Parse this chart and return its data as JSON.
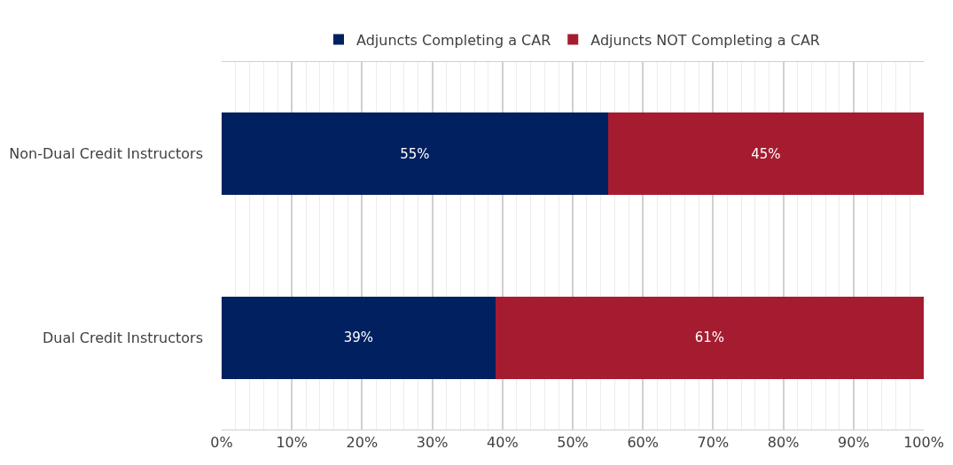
{
  "chart_data": {
    "type": "bar",
    "orientation": "horizontal",
    "stacked": true,
    "categories": [
      "Non-Dual Credit Instructors",
      "Dual Credit Instructors"
    ],
    "series": [
      {
        "name": "Adjuncts Completing a CAR",
        "color": "#002060",
        "values": [
          55,
          39
        ]
      },
      {
        "name": "Adjuncts NOT Completing a CAR",
        "color": "#a51c30",
        "values": [
          45,
          61
        ]
      }
    ],
    "value_labels": [
      [
        "55%",
        "39%"
      ],
      [
        "45%",
        "61%"
      ]
    ],
    "xlim": [
      0,
      100
    ],
    "xticks": [
      {
        "value": 0,
        "label": "0%"
      },
      {
        "value": 10,
        "label": "10%"
      },
      {
        "value": 20,
        "label": "20%"
      },
      {
        "value": 30,
        "label": "30%"
      },
      {
        "value": 40,
        "label": "40%"
      },
      {
        "value": 50,
        "label": "50%"
      },
      {
        "value": 60,
        "label": "60%"
      },
      {
        "value": 70,
        "label": "70%"
      },
      {
        "value": 80,
        "label": "80%"
      },
      {
        "value": 90,
        "label": "90%"
      },
      {
        "value": 100,
        "label": "100%"
      }
    ],
    "grid": "x",
    "legend": "top"
  }
}
